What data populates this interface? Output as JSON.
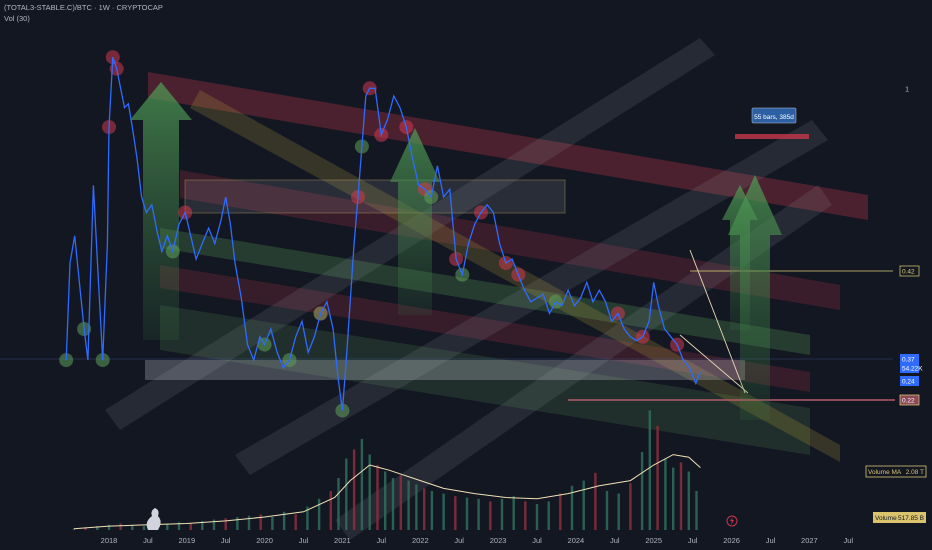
{
  "header": {
    "symbol_line": "(TOTAL3-STABLE.C)/BTC · 1W · CRYPTOCAP",
    "indicator_line": "Vol (30)"
  },
  "colors": {
    "background": "#131722",
    "price_line": "#2f6bff",
    "red_channel": "#d0394f",
    "green_channel": "#6bb35d",
    "grey_channel": "#9aa0ab",
    "yellow_line": "#e2d07a",
    "ma_line": "#f0e0b5",
    "vol_up": "#2f6e5c",
    "vol_down": "#8e2f3c"
  },
  "annotations": {
    "bars_label": "55 bars, 385d"
  },
  "price_axis": {
    "ticks": [
      {
        "label": "1",
        "value": 1.0
      }
    ],
    "tags": [
      {
        "label": "0.42",
        "value": 0.42,
        "style": "line"
      },
      {
        "label": "0.37",
        "value": 0.37,
        "style": "blue"
      },
      {
        "label": "54.22K",
        "value": 0.345,
        "style": "blue"
      },
      {
        "label": "0.24",
        "value": 0.24,
        "style": "blue"
      },
      {
        "label": "0.22",
        "value": 0.22,
        "style": "red"
      }
    ]
  },
  "volume_labels": {
    "ma_label": "Volume MA",
    "ma_value": "2.08 T",
    "volume_label": "Volume",
    "volume_value": "517.85 B"
  },
  "chart_data": {
    "type": "line",
    "title": "(TOTAL3-STABLE.C)/BTC · 1W · CRYPTOCAP",
    "x_axis_labels": [
      "2018",
      "Jul",
      "2019",
      "Jul",
      "2020",
      "Jul",
      "2021",
      "Jul",
      "2022",
      "Jul",
      "2023",
      "Jul",
      "2024",
      "Jul",
      "2025",
      "Jul",
      "2026",
      "Jul",
      "2027",
      "Jul"
    ],
    "x_tick_years": [
      2018.0,
      2018.5,
      2019.0,
      2019.5,
      2020.0,
      2020.5,
      2021.0,
      2021.5,
      2022.0,
      2022.5,
      2023.0,
      2023.5,
      2024.0,
      2024.5,
      2025.0,
      2025.5,
      2026.0,
      2026.5,
      2027.0,
      2027.5
    ],
    "xlim": [
      2016.6,
      2028.1
    ],
    "ylim_price": [
      0.12,
      1.15
    ],
    "series": [
      {
        "x": [
          2017.45,
          2017.5,
          2017.56,
          2017.62,
          2017.68,
          2017.73,
          2017.8,
          2017.86,
          2017.92,
          2017.98,
          2018.0,
          2018.05,
          2018.1,
          2018.15,
          2018.2,
          2018.25,
          2018.3,
          2018.36,
          2018.42,
          2018.48,
          2018.55,
          2018.62,
          2018.68,
          2018.75,
          2018.82,
          2018.9,
          2018.98,
          2019.05,
          2019.12,
          2019.2,
          2019.28,
          2019.36,
          2019.44,
          2019.5,
          2019.56,
          2019.62,
          2019.7,
          2019.78,
          2019.86,
          2019.94,
          2020.0,
          2020.08,
          2020.16,
          2020.24,
          2020.32,
          2020.4,
          2020.48,
          2020.56,
          2020.64,
          2020.72,
          2020.8,
          2020.88,
          2020.94,
          2021.0,
          2021.05,
          2021.1,
          2021.15,
          2021.2,
          2021.25,
          2021.3,
          2021.35,
          2021.42,
          2021.5,
          2021.58,
          2021.66,
          2021.74,
          2021.82,
          2021.9,
          2021.98,
          2022.06,
          2022.14,
          2022.22,
          2022.3,
          2022.38,
          2022.46,
          2022.54,
          2022.62,
          2022.7,
          2022.78,
          2022.86,
          2022.94,
          2023.02,
          2023.1,
          2023.18,
          2023.26,
          2023.34,
          2023.42,
          2023.5,
          2023.58,
          2023.66,
          2023.74,
          2023.82,
          2023.9,
          2023.98,
          2024.06,
          2024.14,
          2024.22,
          2024.3,
          2024.38,
          2024.46,
          2024.54,
          2024.62,
          2024.7,
          2024.78,
          2024.86,
          2024.94,
          2025.0,
          2025.06,
          2025.14,
          2025.22,
          2025.3,
          2025.38,
          2025.46,
          2025.54,
          2025.6
        ],
        "y": [
          0.3,
          0.55,
          0.62,
          0.5,
          0.38,
          0.3,
          0.75,
          0.52,
          0.3,
          0.6,
          0.9,
          1.08,
          1.05,
          1.0,
          0.95,
          0.96,
          0.9,
          0.82,
          0.72,
          0.68,
          0.7,
          0.63,
          0.58,
          0.62,
          0.58,
          0.65,
          0.68,
          0.62,
          0.56,
          0.6,
          0.64,
          0.6,
          0.66,
          0.72,
          0.65,
          0.55,
          0.46,
          0.34,
          0.3,
          0.36,
          0.34,
          0.38,
          0.32,
          0.28,
          0.3,
          0.36,
          0.4,
          0.32,
          0.36,
          0.42,
          0.45,
          0.38,
          0.26,
          0.17,
          0.3,
          0.45,
          0.6,
          0.72,
          0.85,
          0.98,
          1.0,
          1.0,
          0.88,
          0.92,
          0.98,
          0.95,
          0.9,
          0.82,
          0.75,
          0.74,
          0.72,
          0.8,
          0.72,
          0.74,
          0.56,
          0.52,
          0.6,
          0.65,
          0.68,
          0.7,
          0.68,
          0.6,
          0.55,
          0.56,
          0.52,
          0.48,
          0.45,
          0.46,
          0.47,
          0.42,
          0.45,
          0.44,
          0.48,
          0.44,
          0.46,
          0.5,
          0.45,
          0.48,
          0.45,
          0.4,
          0.42,
          0.38,
          0.36,
          0.35,
          0.36,
          0.4,
          0.5,
          0.44,
          0.38,
          0.36,
          0.34,
          0.3,
          0.28,
          0.24,
          0.27
        ]
      }
    ],
    "volume": {
      "ylim": [
        0,
        100
      ],
      "points": [
        {
          "x": 2017.55,
          "v": 1
        },
        {
          "x": 2017.7,
          "v": 2
        },
        {
          "x": 2017.85,
          "v": 3
        },
        {
          "x": 2018.0,
          "v": 4
        },
        {
          "x": 2018.15,
          "v": 5
        },
        {
          "x": 2018.3,
          "v": 4
        },
        {
          "x": 2018.45,
          "v": 3
        },
        {
          "x": 2018.6,
          "v": 4
        },
        {
          "x": 2018.75,
          "v": 5
        },
        {
          "x": 2018.9,
          "v": 6
        },
        {
          "x": 2019.05,
          "v": 5
        },
        {
          "x": 2019.2,
          "v": 7
        },
        {
          "x": 2019.35,
          "v": 8
        },
        {
          "x": 2019.5,
          "v": 9
        },
        {
          "x": 2019.65,
          "v": 10
        },
        {
          "x": 2019.8,
          "v": 11
        },
        {
          "x": 2019.95,
          "v": 12
        },
        {
          "x": 2020.1,
          "v": 10
        },
        {
          "x": 2020.25,
          "v": 14
        },
        {
          "x": 2020.4,
          "v": 12
        },
        {
          "x": 2020.55,
          "v": 18
        },
        {
          "x": 2020.7,
          "v": 24
        },
        {
          "x": 2020.85,
          "v": 30
        },
        {
          "x": 2020.95,
          "v": 40
        },
        {
          "x": 2021.05,
          "v": 55
        },
        {
          "x": 2021.15,
          "v": 62
        },
        {
          "x": 2021.25,
          "v": 70
        },
        {
          "x": 2021.35,
          "v": 58
        },
        {
          "x": 2021.45,
          "v": 50
        },
        {
          "x": 2021.55,
          "v": 45
        },
        {
          "x": 2021.65,
          "v": 40
        },
        {
          "x": 2021.75,
          "v": 42
        },
        {
          "x": 2021.85,
          "v": 38
        },
        {
          "x": 2021.95,
          "v": 35
        },
        {
          "x": 2022.05,
          "v": 32
        },
        {
          "x": 2022.15,
          "v": 30
        },
        {
          "x": 2022.3,
          "v": 28
        },
        {
          "x": 2022.45,
          "v": 26
        },
        {
          "x": 2022.6,
          "v": 25
        },
        {
          "x": 2022.75,
          "v": 24
        },
        {
          "x": 2022.9,
          "v": 22
        },
        {
          "x": 2023.05,
          "v": 24
        },
        {
          "x": 2023.2,
          "v": 26
        },
        {
          "x": 2023.35,
          "v": 22
        },
        {
          "x": 2023.5,
          "v": 20
        },
        {
          "x": 2023.65,
          "v": 22
        },
        {
          "x": 2023.8,
          "v": 28
        },
        {
          "x": 2023.95,
          "v": 34
        },
        {
          "x": 2024.1,
          "v": 38
        },
        {
          "x": 2024.25,
          "v": 44
        },
        {
          "x": 2024.4,
          "v": 30
        },
        {
          "x": 2024.55,
          "v": 28
        },
        {
          "x": 2024.7,
          "v": 36
        },
        {
          "x": 2024.85,
          "v": 60
        },
        {
          "x": 2024.95,
          "v": 92
        },
        {
          "x": 2025.05,
          "v": 80
        },
        {
          "x": 2025.15,
          "v": 55
        },
        {
          "x": 2025.25,
          "v": 48
        },
        {
          "x": 2025.35,
          "v": 52
        },
        {
          "x": 2025.45,
          "v": 45
        },
        {
          "x": 2025.55,
          "v": 30
        }
      ],
      "ma": [
        {
          "x": 2017.55,
          "v": 1
        },
        {
          "x": 2018.0,
          "v": 3
        },
        {
          "x": 2018.5,
          "v": 4
        },
        {
          "x": 2019.0,
          "v": 5
        },
        {
          "x": 2019.5,
          "v": 7
        },
        {
          "x": 2020.0,
          "v": 10
        },
        {
          "x": 2020.5,
          "v": 14
        },
        {
          "x": 2020.9,
          "v": 25
        },
        {
          "x": 2021.1,
          "v": 38
        },
        {
          "x": 2021.35,
          "v": 50
        },
        {
          "x": 2021.6,
          "v": 46
        },
        {
          "x": 2021.9,
          "v": 40
        },
        {
          "x": 2022.3,
          "v": 32
        },
        {
          "x": 2022.7,
          "v": 28
        },
        {
          "x": 2023.1,
          "v": 25
        },
        {
          "x": 2023.5,
          "v": 24
        },
        {
          "x": 2023.9,
          "v": 28
        },
        {
          "x": 2024.3,
          "v": 34
        },
        {
          "x": 2024.7,
          "v": 38
        },
        {
          "x": 2025.0,
          "v": 50
        },
        {
          "x": 2025.25,
          "v": 58
        },
        {
          "x": 2025.45,
          "v": 56
        },
        {
          "x": 2025.6,
          "v": 48
        }
      ]
    },
    "grid": false,
    "legend": "none"
  }
}
